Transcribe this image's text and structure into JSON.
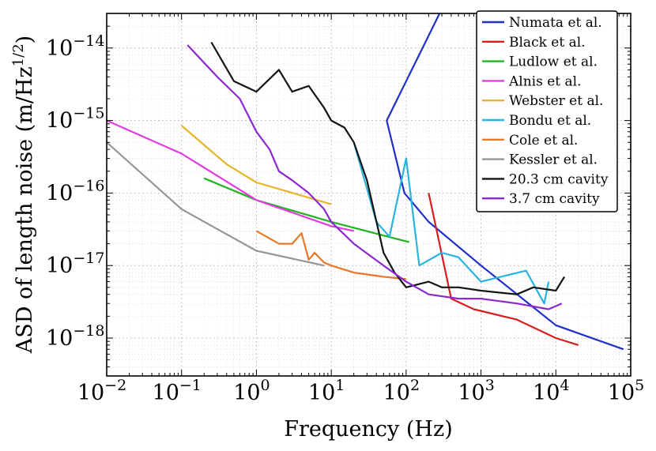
{
  "chart_data": {
    "type": "line",
    "xlabel": "Frequency (Hz)",
    "ylabel": "ASD of length noise (m/Hz",
    "ylabel_exponent": "1/2",
    "ylabel_close": ")",
    "xscale": "log",
    "yscale": "log",
    "xlim": [
      0.01,
      100000
    ],
    "ylim": [
      3e-19,
      3e-14
    ],
    "grid": true,
    "legend_position": "top-right",
    "x_ticks": [
      {
        "base": "10",
        "exp": "−2",
        "value": 0.01
      },
      {
        "base": "10",
        "exp": "−1",
        "value": 0.1
      },
      {
        "base": "10",
        "exp": "0",
        "value": 1
      },
      {
        "base": "10",
        "exp": "1",
        "value": 10
      },
      {
        "base": "10",
        "exp": "2",
        "value": 100
      },
      {
        "base": "10",
        "exp": "3",
        "value": 1000
      },
      {
        "base": "10",
        "exp": "4",
        "value": 10000
      },
      {
        "base": "10",
        "exp": "5",
        "value": 100000
      }
    ],
    "y_ticks": [
      {
        "base": "10",
        "exp": "−14",
        "value": 1e-14
      },
      {
        "base": "10",
        "exp": "−15",
        "value": 1e-15
      },
      {
        "base": "10",
        "exp": "−16",
        "value": 1e-16
      },
      {
        "base": "10",
        "exp": "−17",
        "value": 1e-17
      },
      {
        "base": "10",
        "exp": "−18",
        "value": 1e-18
      }
    ],
    "series": [
      {
        "name": "Numata et al.",
        "color": "#1f2fc8",
        "x": [
          280,
          55,
          95,
          200,
          1000,
          10000,
          80000
        ],
        "y": [
          3e-14,
          1e-15,
          1e-16,
          4e-17,
          1e-17,
          1.5e-18,
          7e-19
        ]
      },
      {
        "name": "Black et al.",
        "color": "#d81e1e",
        "x": [
          200,
          400,
          800,
          3000,
          10000,
          20000
        ],
        "y": [
          1e-16,
          3.5e-18,
          2.5e-18,
          1.8e-18,
          1e-18,
          8e-19
        ]
      },
      {
        "name": "Ludlow et al.",
        "color": "#22b422",
        "x": [
          0.2,
          1,
          10,
          110
        ],
        "y": [
          1.6e-16,
          8e-17,
          4e-17,
          2.1e-17
        ]
      },
      {
        "name": "Alnis et al.",
        "color": "#e03ce0",
        "x": [
          0.01,
          0.1,
          1,
          10,
          20
        ],
        "y": [
          1e-15,
          3.5e-16,
          8e-17,
          3.5e-17,
          3e-17
        ]
      },
      {
        "name": "Webster et al.",
        "color": "#e6b428",
        "x": [
          0.1,
          0.4,
          1,
          10
        ],
        "y": [
          8.5e-16,
          2.5e-16,
          1.4e-16,
          7e-17
        ]
      },
      {
        "name": "Bondu et al.",
        "color": "#28b4dc",
        "x": [
          20,
          40,
          60,
          100,
          150,
          300,
          500,
          1000,
          4000,
          7000,
          8000
        ],
        "y": [
          5e-16,
          4e-17,
          2.5e-17,
          3e-16,
          1e-17,
          1.5e-17,
          1.3e-17,
          6e-18,
          8.5e-18,
          3e-18,
          6e-18
        ]
      },
      {
        "name": "Cole et al.",
        "color": "#e67828",
        "x": [
          1,
          2,
          3,
          4,
          5,
          6,
          8,
          10,
          20,
          50,
          100
        ],
        "y": [
          3e-17,
          2e-17,
          2e-17,
          2.8e-17,
          1.2e-17,
          1.5e-17,
          1.1e-17,
          1e-17,
          8e-18,
          7e-18,
          6.5e-18
        ]
      },
      {
        "name": "Kessler et al.",
        "color": "#969696",
        "x": [
          0.01,
          0.1,
          1,
          8
        ],
        "y": [
          5e-16,
          6e-17,
          1.6e-17,
          1e-17
        ]
      },
      {
        "name": "20.3 cm cavity",
        "color": "#141414",
        "x": [
          0.25,
          0.5,
          1,
          2,
          3,
          5,
          8,
          10,
          15,
          20,
          30,
          50,
          70,
          100,
          200,
          300,
          500,
          1000,
          3000,
          5000,
          10000,
          13000
        ],
        "y": [
          1.2e-14,
          3.5e-15,
          2.5e-15,
          5e-15,
          2.5e-15,
          3e-15,
          1.5e-15,
          1e-15,
          8e-16,
          5e-16,
          1.5e-16,
          1.5e-17,
          8e-18,
          5e-18,
          6e-18,
          5e-18,
          5e-18,
          4.5e-18,
          4e-18,
          5e-18,
          4.5e-18,
          7e-18
        ]
      },
      {
        "name": "3.7 cm cavity",
        "color": "#8c28d2",
        "x": [
          0.12,
          0.3,
          0.6,
          1,
          1.5,
          2,
          3,
          5,
          8,
          10,
          20,
          50,
          100,
          200,
          500,
          1000,
          3000,
          8000,
          12000
        ],
        "y": [
          1.1e-14,
          4e-15,
          2e-15,
          7e-16,
          4e-16,
          2e-16,
          1.5e-16,
          1e-16,
          6e-17,
          4e-17,
          2e-17,
          1e-17,
          6e-18,
          4e-18,
          3.5e-18,
          3.5e-18,
          3e-18,
          2.5e-18,
          3e-18
        ]
      }
    ]
  }
}
